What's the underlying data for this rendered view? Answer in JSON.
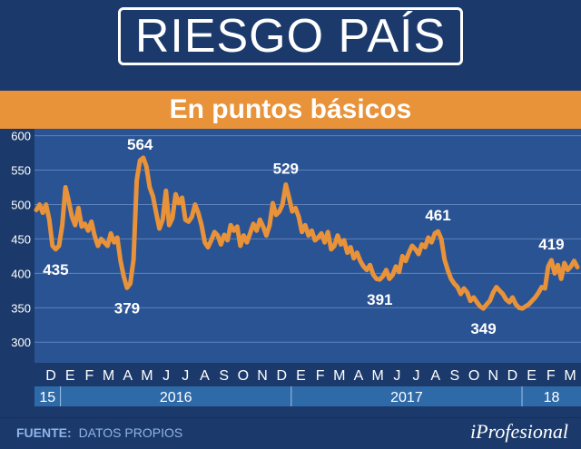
{
  "header": {
    "title": "RIESGO PAÍS",
    "subtitle": "En puntos básicos"
  },
  "footer": {
    "source_label": "FUENTE:",
    "source_value": "DATOS PROPIOS",
    "brand": "iProfesional"
  },
  "colors": {
    "background": "#1b3a6b",
    "plot_background": "#2a5393",
    "accent": "#e8923a",
    "year_band": "#2f6aa8"
  },
  "chart_data": {
    "type": "line",
    "title": "RIESGO PAÍS",
    "subtitle": "En puntos básicos",
    "xlabel": "",
    "ylabel": "",
    "ylim": [
      270,
      610
    ],
    "y_ticks": [
      600,
      550,
      500,
      450,
      400,
      350,
      300
    ],
    "grid": true,
    "x_month_labels": [
      "D",
      "E",
      "F",
      "M",
      "A",
      "M",
      "J",
      "J",
      "A",
      "S",
      "O",
      "N",
      "D",
      "E",
      "F",
      "M",
      "A",
      "M",
      "J",
      "J",
      "A",
      "S",
      "O",
      "N",
      "D",
      "E",
      "F",
      "M"
    ],
    "x_year_labels": [
      "15",
      "2016",
      "2017",
      "18"
    ],
    "series": [
      {
        "values": [
          492,
          500,
          488,
          500,
          478,
          440,
          435,
          440,
          470,
          525,
          505,
          482,
          470,
          495,
          468,
          472,
          462,
          475,
          455,
          440,
          450,
          445,
          440,
          458,
          445,
          452,
          418,
          395,
          379,
          385,
          420,
          535,
          564,
          568,
          555,
          525,
          512,
          488,
          465,
          478,
          520,
          470,
          480,
          515,
          502,
          510,
          478,
          475,
          482,
          500,
          488,
          470,
          445,
          438,
          448,
          460,
          455,
          442,
          456,
          448,
          470,
          462,
          468,
          440,
          455,
          445,
          458,
          472,
          462,
          478,
          468,
          455,
          470,
          502,
          485,
          490,
          500,
          529,
          510,
          490,
          495,
          482,
          460,
          470,
          455,
          462,
          448,
          452,
          458,
          445,
          460,
          435,
          440,
          455,
          442,
          448,
          430,
          438,
          422,
          430,
          418,
          410,
          405,
          412,
          398,
          392,
          391,
          396,
          405,
          392,
          398,
          410,
          402,
          425,
          418,
          430,
          440,
          435,
          428,
          442,
          438,
          452,
          445,
          458,
          461,
          450,
          420,
          405,
          392,
          385,
          380,
          370,
          378,
          372,
          360,
          365,
          358,
          352,
          349,
          355,
          360,
          372,
          380,
          375,
          370,
          362,
          358,
          365,
          355,
          350,
          349,
          352,
          355,
          360,
          365,
          372,
          380,
          378,
          410,
          419,
          400,
          412,
          392,
          415,
          405,
          410,
          418,
          409
        ]
      }
    ],
    "annotations": [
      {
        "label": "564",
        "value": 564
      },
      {
        "label": "435",
        "value": 435
      },
      {
        "label": "379",
        "value": 379
      },
      {
        "label": "529",
        "value": 529
      },
      {
        "label": "391",
        "value": 391
      },
      {
        "label": "461",
        "value": 461
      },
      {
        "label": "349",
        "value": 349
      },
      {
        "label": "419",
        "value": 419
      }
    ]
  }
}
